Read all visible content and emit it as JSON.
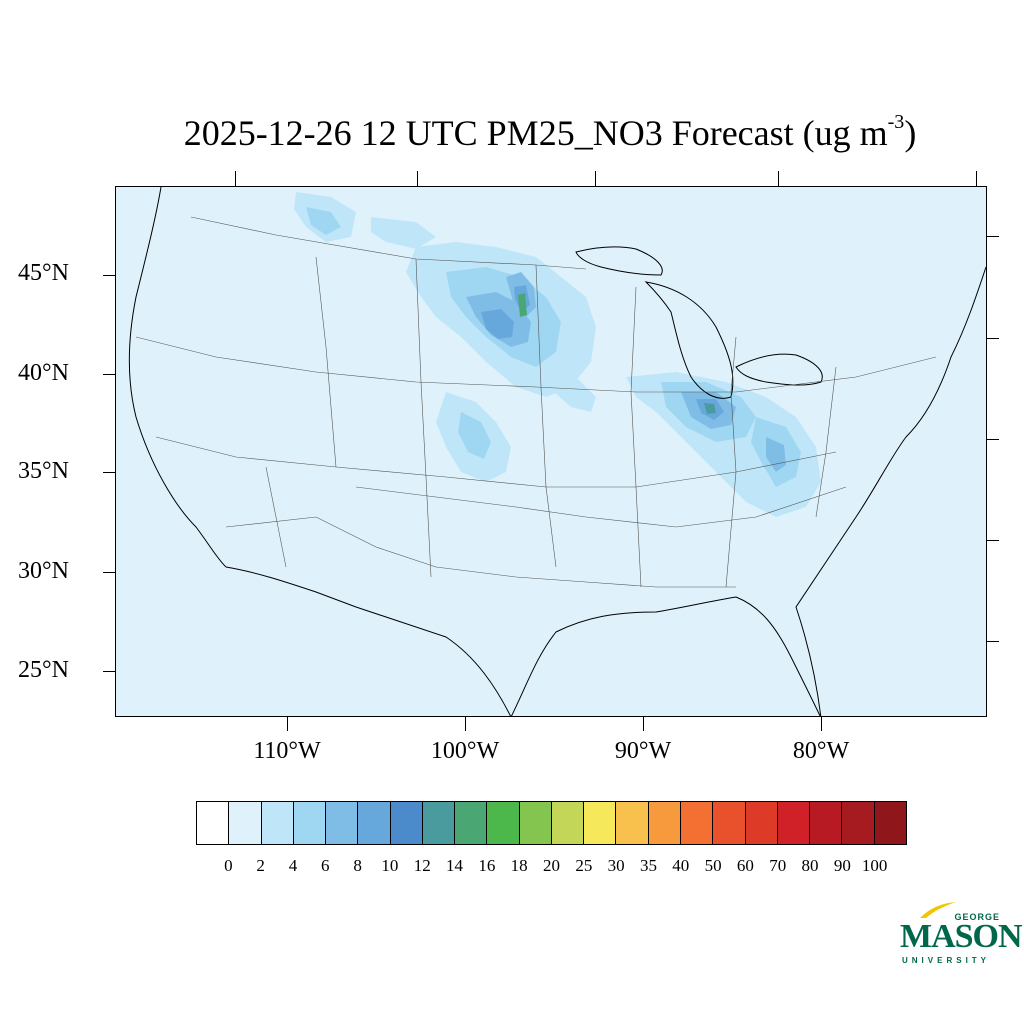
{
  "title": {
    "text": "2025-12-26 12 UTC PM25_NO3 Forecast (ug m",
    "sup": "-3",
    "close": ")"
  },
  "map": {
    "projection": "Lambert conformal (CONUS)",
    "background_color": "#dff2fb",
    "lat_labels": [
      "45°N",
      "40°N",
      "35°N",
      "30°N",
      "25°N"
    ],
    "lon_labels": [
      "110°W",
      "100°W",
      "90°W",
      "80°W"
    ]
  },
  "colorbar": {
    "labels": [
      "0",
      "2",
      "4",
      "6",
      "8",
      "10",
      "12",
      "14",
      "16",
      "18",
      "20",
      "25",
      "30",
      "35",
      "40",
      "50",
      "60",
      "70",
      "80",
      "90",
      "100"
    ],
    "colors": [
      "#ffffff",
      "#dff2fb",
      "#bfe6f8",
      "#9fd7f3",
      "#80bde6",
      "#67a8dc",
      "#4b8bcb",
      "#4a9b9e",
      "#4aa673",
      "#4cb84c",
      "#84c54f",
      "#c4d657",
      "#f6e85b",
      "#f8c04c",
      "#f79a3d",
      "#f37032",
      "#e9512d",
      "#dd3a28",
      "#d12128",
      "#b81a23",
      "#a51b20",
      "#8f161a"
    ]
  },
  "logo": {
    "line1": "GEORGE",
    "line2": "MASON",
    "line3": "UNIVERSITY",
    "color": "#00674b",
    "accent": "#f2c500"
  }
}
